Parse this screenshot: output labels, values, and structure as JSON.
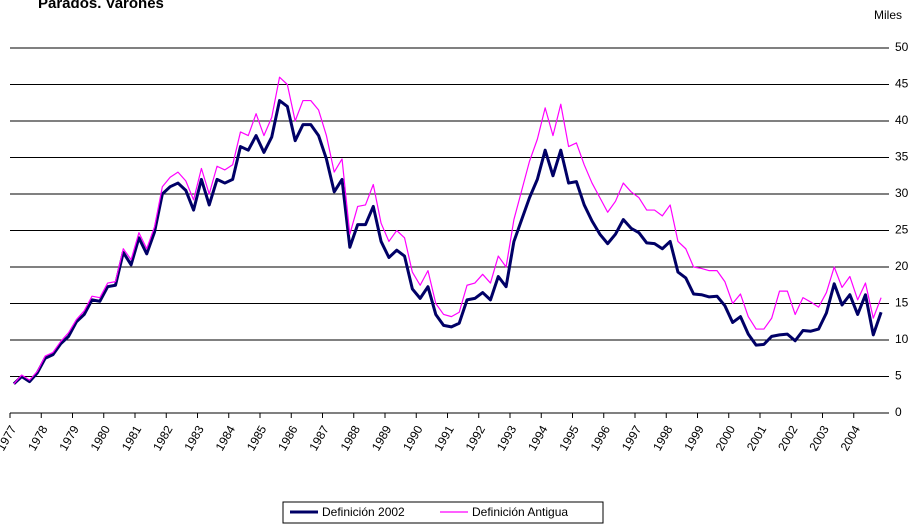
{
  "chart_data": {
    "type": "line",
    "title": "Parados. Varones",
    "y_axis_label": "Miles",
    "categories": [
      "1977",
      null,
      null,
      null,
      "1978",
      null,
      null,
      null,
      "1979",
      null,
      null,
      null,
      "1980",
      null,
      null,
      null,
      "1981",
      null,
      null,
      null,
      "1982",
      null,
      null,
      null,
      "1983",
      null,
      null,
      null,
      "1984",
      null,
      null,
      null,
      "1985",
      null,
      null,
      null,
      "1986",
      null,
      null,
      null,
      "1987",
      null,
      null,
      null,
      "1988",
      null,
      null,
      null,
      "1989",
      null,
      null,
      null,
      "1990",
      null,
      null,
      null,
      "1991",
      null,
      null,
      null,
      "1992",
      null,
      null,
      null,
      "1993",
      null,
      null,
      null,
      "1994",
      null,
      null,
      null,
      "1995",
      null,
      null,
      null,
      "1996",
      null,
      null,
      null,
      "1997",
      null,
      null,
      null,
      "1998",
      null,
      null,
      null,
      "1999",
      null,
      null,
      null,
      "2000",
      null,
      null,
      null,
      "2001",
      null,
      null,
      null,
      "2002",
      null,
      null,
      null,
      "2003",
      null,
      null,
      null,
      "2004",
      null,
      null,
      null
    ],
    "series": [
      {
        "name": "Definición 2002",
        "color": "#000066",
        "width": 3,
        "values": [
          4,
          5,
          4.3,
          5.5,
          7.5,
          8,
          9.5,
          10.5,
          12.5,
          13.5,
          15.5,
          15.3,
          17.3,
          17.5,
          22,
          20.3,
          24,
          21.8,
          24.8,
          30,
          31,
          31.5,
          30.5,
          27.8,
          32,
          28.5,
          32,
          31.5,
          32,
          36.5,
          36,
          38,
          35.7,
          37.8,
          42.8,
          42,
          37.3,
          39.5,
          39.5,
          38,
          34.8,
          30.3,
          32,
          22.7,
          25.8,
          25.8,
          28.3,
          23.5,
          21.3,
          22.3,
          21.5,
          17,
          15.7,
          17.3,
          13.5,
          12,
          11.8,
          12.3,
          15.5,
          15.7,
          16.5,
          15.5,
          18.7,
          17.3,
          23.5,
          26.5,
          29.5,
          32,
          36,
          32.5,
          36,
          31.5,
          31.7,
          28.5,
          26.3,
          24.5,
          23.2,
          24.5,
          26.5,
          25.3,
          24.7,
          23.3,
          23.2,
          22.5,
          23.5,
          19.3,
          18.5,
          16.3,
          16.2,
          15.9,
          16,
          14.7,
          12.4,
          13.2,
          10.8,
          9.3,
          9.4,
          10.5,
          10.7,
          10.8,
          9.9,
          11.3,
          11.2,
          11.5,
          13.7,
          17.7,
          14.8,
          16.2,
          13.5,
          16.2,
          10.7,
          13.8
        ]
      },
      {
        "name": "Definición Antigua",
        "color": "#ff00ff",
        "width": 1.2,
        "values": [
          4,
          5.2,
          4.5,
          5.7,
          7.8,
          8.3,
          9.8,
          11,
          12.8,
          14,
          16,
          15.8,
          17.8,
          18,
          22.5,
          21,
          24.7,
          22.5,
          25.5,
          31,
          32.3,
          33,
          31.8,
          29.2,
          33.5,
          30,
          33.8,
          33.3,
          34,
          38.5,
          38,
          41,
          38,
          40.5,
          46,
          45,
          40,
          42.8,
          42.8,
          41.5,
          38,
          33,
          34.8,
          24.5,
          28.3,
          28.5,
          31.3,
          26,
          23.5,
          25,
          24,
          19.3,
          17.5,
          19.5,
          15,
          13.5,
          13.2,
          13.8,
          17.5,
          17.8,
          19,
          17.8,
          21.5,
          20,
          26.5,
          30.5,
          34.5,
          37.5,
          41.8,
          38,
          42.3,
          36.5,
          37,
          34,
          31.5,
          29.5,
          27.5,
          29,
          31.5,
          30.3,
          29.5,
          27.8,
          27.8,
          27,
          28.5,
          23.5,
          22.5,
          20,
          19.8,
          19.5,
          19.5,
          18,
          15,
          16.3,
          13.2,
          11.5,
          11.5,
          13,
          16.7,
          16.7,
          13.5,
          15.8,
          15.2,
          14.5,
          16.5,
          20,
          17.2,
          18.7,
          15.5,
          17.8,
          13,
          15.8
        ]
      }
    ],
    "ylim": [
      0,
      50
    ],
    "yticks": [
      0,
      5,
      10,
      15,
      20,
      25,
      30,
      35,
      40,
      45,
      50
    ],
    "grid": true,
    "legend": "bottom"
  }
}
